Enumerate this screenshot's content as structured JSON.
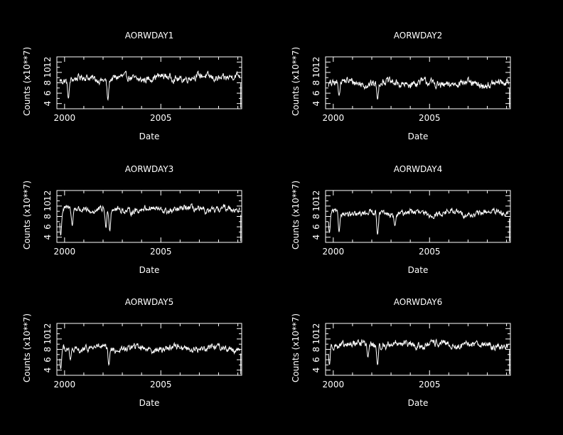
{
  "figure": {
    "background": "#000000",
    "foreground": "#ffffff"
  },
  "chart_data": [
    {
      "type": "line",
      "title": "AORWDAY1",
      "xlabel": "Date",
      "ylabel": "Counts (x10**7)",
      "xlim": [
        1999.6,
        2009.2
      ],
      "ylim": [
        3,
        13
      ],
      "xticks": [
        2000,
        2005
      ],
      "xtick_labels": [
        "2000",
        "2005"
      ],
      "yticks": [
        4,
        6,
        8,
        10,
        12
      ],
      "ytick_labels": [
        "4",
        "6",
        "8",
        "10",
        "12"
      ],
      "grid": false,
      "legend": "none",
      "base": 8.9,
      "slope": 0.05,
      "noise": 0.55,
      "dips": [
        [
          2000.2,
          5.0
        ],
        [
          2002.25,
          4.7
        ]
      ],
      "samples": 460
    },
    {
      "type": "line",
      "title": "AORWDAY2",
      "xlabel": "Date",
      "ylabel": "Counts (x10**7)",
      "xlim": [
        1999.6,
        2009.2
      ],
      "ylim": [
        3,
        13
      ],
      "xticks": [
        2000,
        2005
      ],
      "xtick_labels": [
        "2000",
        "2005"
      ],
      "yticks": [
        4,
        6,
        8,
        10,
        12
      ],
      "ytick_labels": [
        "4",
        "6",
        "8",
        "10",
        "12"
      ],
      "grid": false,
      "legend": "none",
      "base": 7.9,
      "slope": -0.04,
      "noise": 0.6,
      "dips": [
        [
          2000.3,
          5.6
        ],
        [
          2002.3,
          4.8
        ]
      ],
      "samples": 460
    },
    {
      "type": "line",
      "title": "AORWDAY3",
      "xlabel": "Date",
      "ylabel": "Counts (x10**7)",
      "xlim": [
        1999.6,
        2009.2
      ],
      "ylim": [
        3,
        13
      ],
      "xticks": [
        2000,
        2005
      ],
      "xtick_labels": [
        "2000",
        "2005"
      ],
      "yticks": [
        4,
        6,
        8,
        10,
        12
      ],
      "ytick_labels": [
        "4",
        "6",
        "8",
        "10",
        "12"
      ],
      "grid": false,
      "legend": "none",
      "base": 9.3,
      "slope": 0.0,
      "noise": 0.5,
      "dips": [
        [
          1999.8,
          4.3
        ],
        [
          2000.4,
          6.2
        ],
        [
          2002.15,
          5.8
        ],
        [
          2002.35,
          5.2
        ]
      ],
      "samples": 460
    },
    {
      "type": "line",
      "title": "AORWDAY4",
      "xlabel": "Date",
      "ylabel": "Counts (x10**7)",
      "xlim": [
        1999.6,
        2009.2
      ],
      "ylim": [
        3,
        13
      ],
      "xticks": [
        2000,
        2005
      ],
      "xtick_labels": [
        "2000",
        "2005"
      ],
      "yticks": [
        4,
        6,
        8,
        10,
        12
      ],
      "ytick_labels": [
        "4",
        "6",
        "8",
        "10",
        "12"
      ],
      "grid": false,
      "legend": "none",
      "base": 8.6,
      "slope": 0.0,
      "noise": 0.45,
      "dips": [
        [
          1999.8,
          4.8
        ],
        [
          2000.3,
          5.0
        ],
        [
          2002.3,
          4.5
        ],
        [
          2003.2,
          6.2
        ]
      ],
      "samples": 460
    },
    {
      "type": "line",
      "title": "AORWDAY5",
      "xlabel": "Date",
      "ylabel": "Counts (x10**7)",
      "xlim": [
        1999.6,
        2009.2
      ],
      "ylim": [
        3,
        13
      ],
      "xticks": [
        2000,
        2005
      ],
      "xtick_labels": [
        "2000",
        "2005"
      ],
      "yticks": [
        4,
        6,
        8,
        10,
        12
      ],
      "ytick_labels": [
        "4",
        "6",
        "8",
        "10",
        "12"
      ],
      "grid": false,
      "legend": "none",
      "base": 8.2,
      "slope": 0.02,
      "noise": 0.5,
      "dips": [
        [
          1999.8,
          4.2
        ],
        [
          2000.3,
          6.0
        ],
        [
          2002.3,
          5.0
        ]
      ],
      "samples": 460
    },
    {
      "type": "line",
      "title": "AORWDAY6",
      "xlabel": "Date",
      "ylabel": "Counts (x10**7)",
      "xlim": [
        1999.6,
        2009.2
      ],
      "ylim": [
        3,
        13
      ],
      "xticks": [
        2000,
        2005
      ],
      "xtick_labels": [
        "2000",
        "2005"
      ],
      "yticks": [
        4,
        6,
        8,
        10,
        12
      ],
      "ytick_labels": [
        "4",
        "6",
        "8",
        "10",
        "12"
      ],
      "grid": false,
      "legend": "none",
      "base": 8.9,
      "slope": -0.02,
      "noise": 0.55,
      "dips": [
        [
          1999.8,
          5.0
        ],
        [
          2001.8,
          6.5
        ],
        [
          2002.3,
          5.0
        ]
      ],
      "samples": 460
    }
  ]
}
